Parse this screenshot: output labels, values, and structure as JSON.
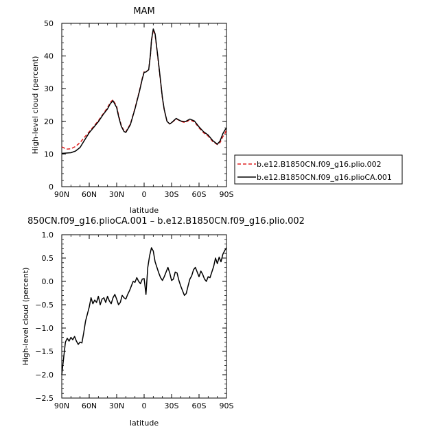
{
  "chart_data": [
    {
      "type": "line",
      "title": "MAM",
      "xlabel": "latitude",
      "ylabel": "High-level cloud (percent)",
      "x_ticks": [
        "90N",
        "60N",
        "30N",
        "0",
        "30S",
        "60S",
        "90S"
      ],
      "y_ticks": [
        "0",
        "10",
        "20",
        "30",
        "40",
        "50"
      ],
      "xlim": [
        90,
        -90
      ],
      "ylim": [
        0,
        50
      ],
      "legend_position": "right",
      "series": [
        {
          "name": "b.e12.B1850CN.f09_g16.plio.002",
          "color": "#e02020",
          "style": "dashed",
          "x": [
            90,
            85,
            80,
            75,
            70,
            65,
            60,
            55,
            50,
            45,
            40,
            37,
            34,
            30,
            28,
            25,
            22,
            20,
            15,
            10,
            5,
            2,
            0,
            -2,
            -5,
            -7,
            -8,
            -10,
            -12,
            -15,
            -18,
            -20,
            -22,
            -25,
            -28,
            -30,
            -35,
            -40,
            -45,
            -50,
            -55,
            -60,
            -65,
            -70,
            -75,
            -80,
            -83,
            -86,
            -88,
            -90
          ],
          "y": [
            12.2,
            11.5,
            11.6,
            12.3,
            13.5,
            15.2,
            16.8,
            18.5,
            20.2,
            22.2,
            24.2,
            25.8,
            26.6,
            24.6,
            22.0,
            18.8,
            17.1,
            16.8,
            19.2,
            24.0,
            29.5,
            33.2,
            35.2,
            35.2,
            35.8,
            40.5,
            44.5,
            48.0,
            46.5,
            39.5,
            32.0,
            27.0,
            23.5,
            20.0,
            19.2,
            19.5,
            20.8,
            20.0,
            19.6,
            20.5,
            19.8,
            18.0,
            16.5,
            15.5,
            13.8,
            12.9,
            13.5,
            15.3,
            16.0,
            17.5
          ]
        },
        {
          "name": "b.e12.B1850CN.f09_g16.plioCA.001",
          "color": "#000000",
          "style": "solid",
          "x": [
            90,
            85,
            80,
            75,
            70,
            65,
            60,
            55,
            50,
            45,
            40,
            37,
            34,
            30,
            28,
            25,
            22,
            20,
            15,
            10,
            5,
            2,
            0,
            -2,
            -5,
            -7,
            -8,
            -10,
            -12,
            -15,
            -18,
            -20,
            -22,
            -25,
            -28,
            -30,
            -35,
            -40,
            -45,
            -50,
            -55,
            -60,
            -65,
            -70,
            -75,
            -80,
            -83,
            -86,
            -88,
            -90
          ],
          "y": [
            10.2,
            10.3,
            10.4,
            10.9,
            12.0,
            14.3,
            16.5,
            18.2,
            19.9,
            22.0,
            23.8,
            25.4,
            26.3,
            24.2,
            21.6,
            18.5,
            16.9,
            16.6,
            19.0,
            23.8,
            29.3,
            33.0,
            35.0,
            35.1,
            35.8,
            40.7,
            44.8,
            48.3,
            46.8,
            39.8,
            32.3,
            27.2,
            23.6,
            20.0,
            19.2,
            19.6,
            20.9,
            20.1,
            19.9,
            20.7,
            20.1,
            18.3,
            16.8,
            15.8,
            14.1,
            13.0,
            14.0,
            16.2,
            17.2,
            18.0
          ]
        }
      ]
    },
    {
      "type": "line",
      "title": "850CN.f09_g16.plioCA.001 – b.e12.B1850CN.f09_g16.plio.002",
      "xlabel": "latitude",
      "ylabel": "High-level cloud (percent)",
      "x_ticks": [
        "90N",
        "60N",
        "30N",
        "0",
        "30S",
        "60S",
        "90S"
      ],
      "y_ticks": [
        "1.0",
        "0.5",
        "0.0",
        "−0.5",
        "−1.0",
        "−1.5",
        "−2.0",
        "−2.5"
      ],
      "xlim": [
        90,
        -90
      ],
      "ylim": [
        -2.5,
        1.0
      ],
      "series": [
        {
          "color": "#000000",
          "style": "solid",
          "x": [
            90,
            88,
            86,
            84,
            82,
            80,
            78,
            76,
            74,
            72,
            70,
            68,
            66,
            64,
            62,
            60,
            58,
            56,
            54,
            52,
            50,
            48,
            46,
            44,
            42,
            40,
            38,
            36,
            34,
            32,
            30,
            28,
            26,
            24,
            22,
            20,
            18,
            16,
            14,
            12,
            10,
            8,
            6,
            4,
            2,
            0,
            -2,
            -4,
            -6,
            -8,
            -10,
            -12,
            -14,
            -16,
            -18,
            -20,
            -22,
            -24,
            -26,
            -28,
            -30,
            -32,
            -34,
            -36,
            -38,
            -40,
            -42,
            -44,
            -46,
            -48,
            -50,
            -52,
            -54,
            -56,
            -58,
            -60,
            -62,
            -64,
            -66,
            -68,
            -70,
            -72,
            -74,
            -76,
            -78,
            -80,
            -82,
            -84,
            -86,
            -88,
            -90
          ],
          "y": [
            -2.0,
            -1.65,
            -1.3,
            -1.22,
            -1.28,
            -1.2,
            -1.25,
            -1.18,
            -1.28,
            -1.35,
            -1.3,
            -1.32,
            -1.1,
            -0.85,
            -0.7,
            -0.55,
            -0.35,
            -0.48,
            -0.4,
            -0.45,
            -0.32,
            -0.5,
            -0.38,
            -0.35,
            -0.45,
            -0.32,
            -0.42,
            -0.48,
            -0.35,
            -0.28,
            -0.38,
            -0.5,
            -0.45,
            -0.3,
            -0.35,
            -0.38,
            -0.28,
            -0.2,
            -0.1,
            0.0,
            -0.02,
            0.08,
            0.0,
            -0.05,
            0.05,
            0.06,
            -0.28,
            0.3,
            0.55,
            0.72,
            0.65,
            0.42,
            0.3,
            0.18,
            0.08,
            0.02,
            0.1,
            0.2,
            0.3,
            0.18,
            0.02,
            0.05,
            0.2,
            0.18,
            0.02,
            -0.1,
            -0.2,
            -0.3,
            -0.26,
            -0.1,
            0.05,
            0.12,
            0.25,
            0.3,
            0.2,
            0.1,
            0.22,
            0.15,
            0.05,
            0.0,
            0.1,
            0.08,
            0.2,
            0.32,
            0.5,
            0.38,
            0.52,
            0.42,
            0.58,
            0.66,
            0.72
          ]
        }
      ]
    }
  ]
}
